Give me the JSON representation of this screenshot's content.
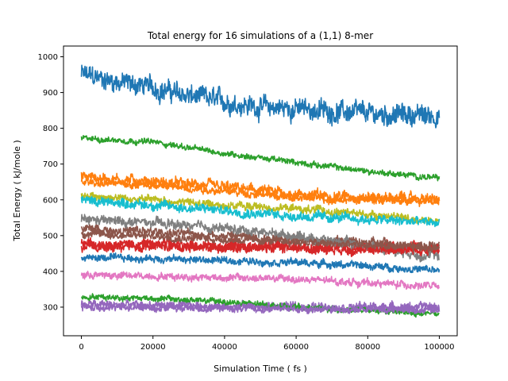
{
  "chart_data": {
    "type": "line",
    "title": "Total energy for 16 simulations of a (1,1) 8-mer",
    "xlabel": "Simulation Time ( fs )",
    "ylabel": "Total Energy ( kJ/mole )",
    "xlim": [
      -5000,
      105000
    ],
    "ylim": [
      220,
      1030
    ],
    "xticks": [
      0,
      20000,
      40000,
      60000,
      80000,
      100000
    ],
    "yticks": [
      300,
      400,
      500,
      600,
      700,
      800,
      900,
      1000
    ],
    "grid": false,
    "series": [
      {
        "color": "#1f77b4",
        "x": [
          0,
          10000,
          20000,
          30000,
          40000,
          50000,
          60000,
          70000,
          80000,
          90000,
          100000
        ],
        "y": [
          950,
          930,
          915,
          890,
          875,
          860,
          855,
          848,
          840,
          838,
          835
        ],
        "noise": 28
      },
      {
        "color": "#ff7f0e",
        "x": [
          0,
          20000,
          40000,
          60000,
          80000,
          100000
        ],
        "y": [
          665,
          650,
          635,
          615,
          608,
          600
        ],
        "noise": 15
      },
      {
        "color": "#2ca02c",
        "x": [
          0,
          20000,
          40000,
          60000,
          80000,
          100000
        ],
        "y": [
          772,
          762,
          730,
          705,
          680,
          660
        ],
        "noise": 8
      },
      {
        "color": "#d62728",
        "x": [
          0,
          20000,
          40000,
          60000,
          80000,
          100000
        ],
        "y": [
          478,
          475,
          472,
          470,
          468,
          465
        ],
        "noise": 14
      },
      {
        "color": "#9467bd",
        "x": [
          0,
          20000,
          40000,
          60000,
          80000,
          100000
        ],
        "y": [
          307,
          305,
          303,
          302,
          300,
          300
        ],
        "noise": 12
      },
      {
        "color": "#8c564b",
        "x": [
          0,
          20000,
          40000,
          60000,
          80000,
          100000
        ],
        "y": [
          520,
          510,
          500,
          490,
          480,
          470
        ],
        "noise": 12
      },
      {
        "color": "#e377c2",
        "x": [
          0,
          20000,
          40000,
          60000,
          80000,
          100000
        ],
        "y": [
          390,
          387,
          383,
          378,
          368,
          358
        ],
        "noise": 10
      },
      {
        "color": "#7f7f7f",
        "x": [
          0,
          20000,
          40000,
          60000,
          80000,
          100000
        ],
        "y": [
          545,
          535,
          520,
          500,
          470,
          440
        ],
        "noise": 13
      },
      {
        "color": "#bcbd22",
        "x": [
          0,
          20000,
          40000,
          60000,
          80000,
          100000
        ],
        "y": [
          612,
          600,
          585,
          575,
          560,
          540
        ],
        "noise": 11
      },
      {
        "color": "#17becf",
        "x": [
          0,
          20000,
          40000,
          60000,
          80000,
          100000
        ],
        "y": [
          600,
          585,
          570,
          555,
          545,
          535
        ],
        "noise": 13
      },
      {
        "color": "#1f77b4",
        "x": [
          0,
          20000,
          40000,
          60000,
          80000,
          100000
        ],
        "y": [
          438,
          436,
          430,
          425,
          415,
          402
        ],
        "noise": 10
      },
      {
        "color": "#ff7f0e",
        "x": [
          0,
          20000,
          40000,
          60000,
          80000,
          100000
        ],
        "y": [
          650,
          640,
          625,
          605,
          600,
          595
        ],
        "noise": 10
      },
      {
        "color": "#2ca02c",
        "x": [
          0,
          20000,
          40000,
          60000,
          80000,
          100000
        ],
        "y": [
          330,
          325,
          315,
          300,
          290,
          280
        ],
        "noise": 8
      },
      {
        "color": "#d62728",
        "x": [
          0,
          20000,
          40000,
          60000,
          80000,
          100000
        ],
        "y": [
          468,
          470,
          468,
          465,
          462,
          458
        ],
        "noise": 13
      },
      {
        "color": "#9467bd",
        "x": [
          0,
          20000,
          40000,
          60000,
          80000,
          100000
        ],
        "y": [
          300,
          298,
          297,
          295,
          294,
          293
        ],
        "noise": 10
      },
      {
        "color": "#8c564b",
        "x": [
          0,
          20000,
          40000,
          60000,
          80000,
          100000
        ],
        "y": [
          505,
          498,
          490,
          482,
          472,
          465
        ],
        "noise": 10
      }
    ]
  }
}
